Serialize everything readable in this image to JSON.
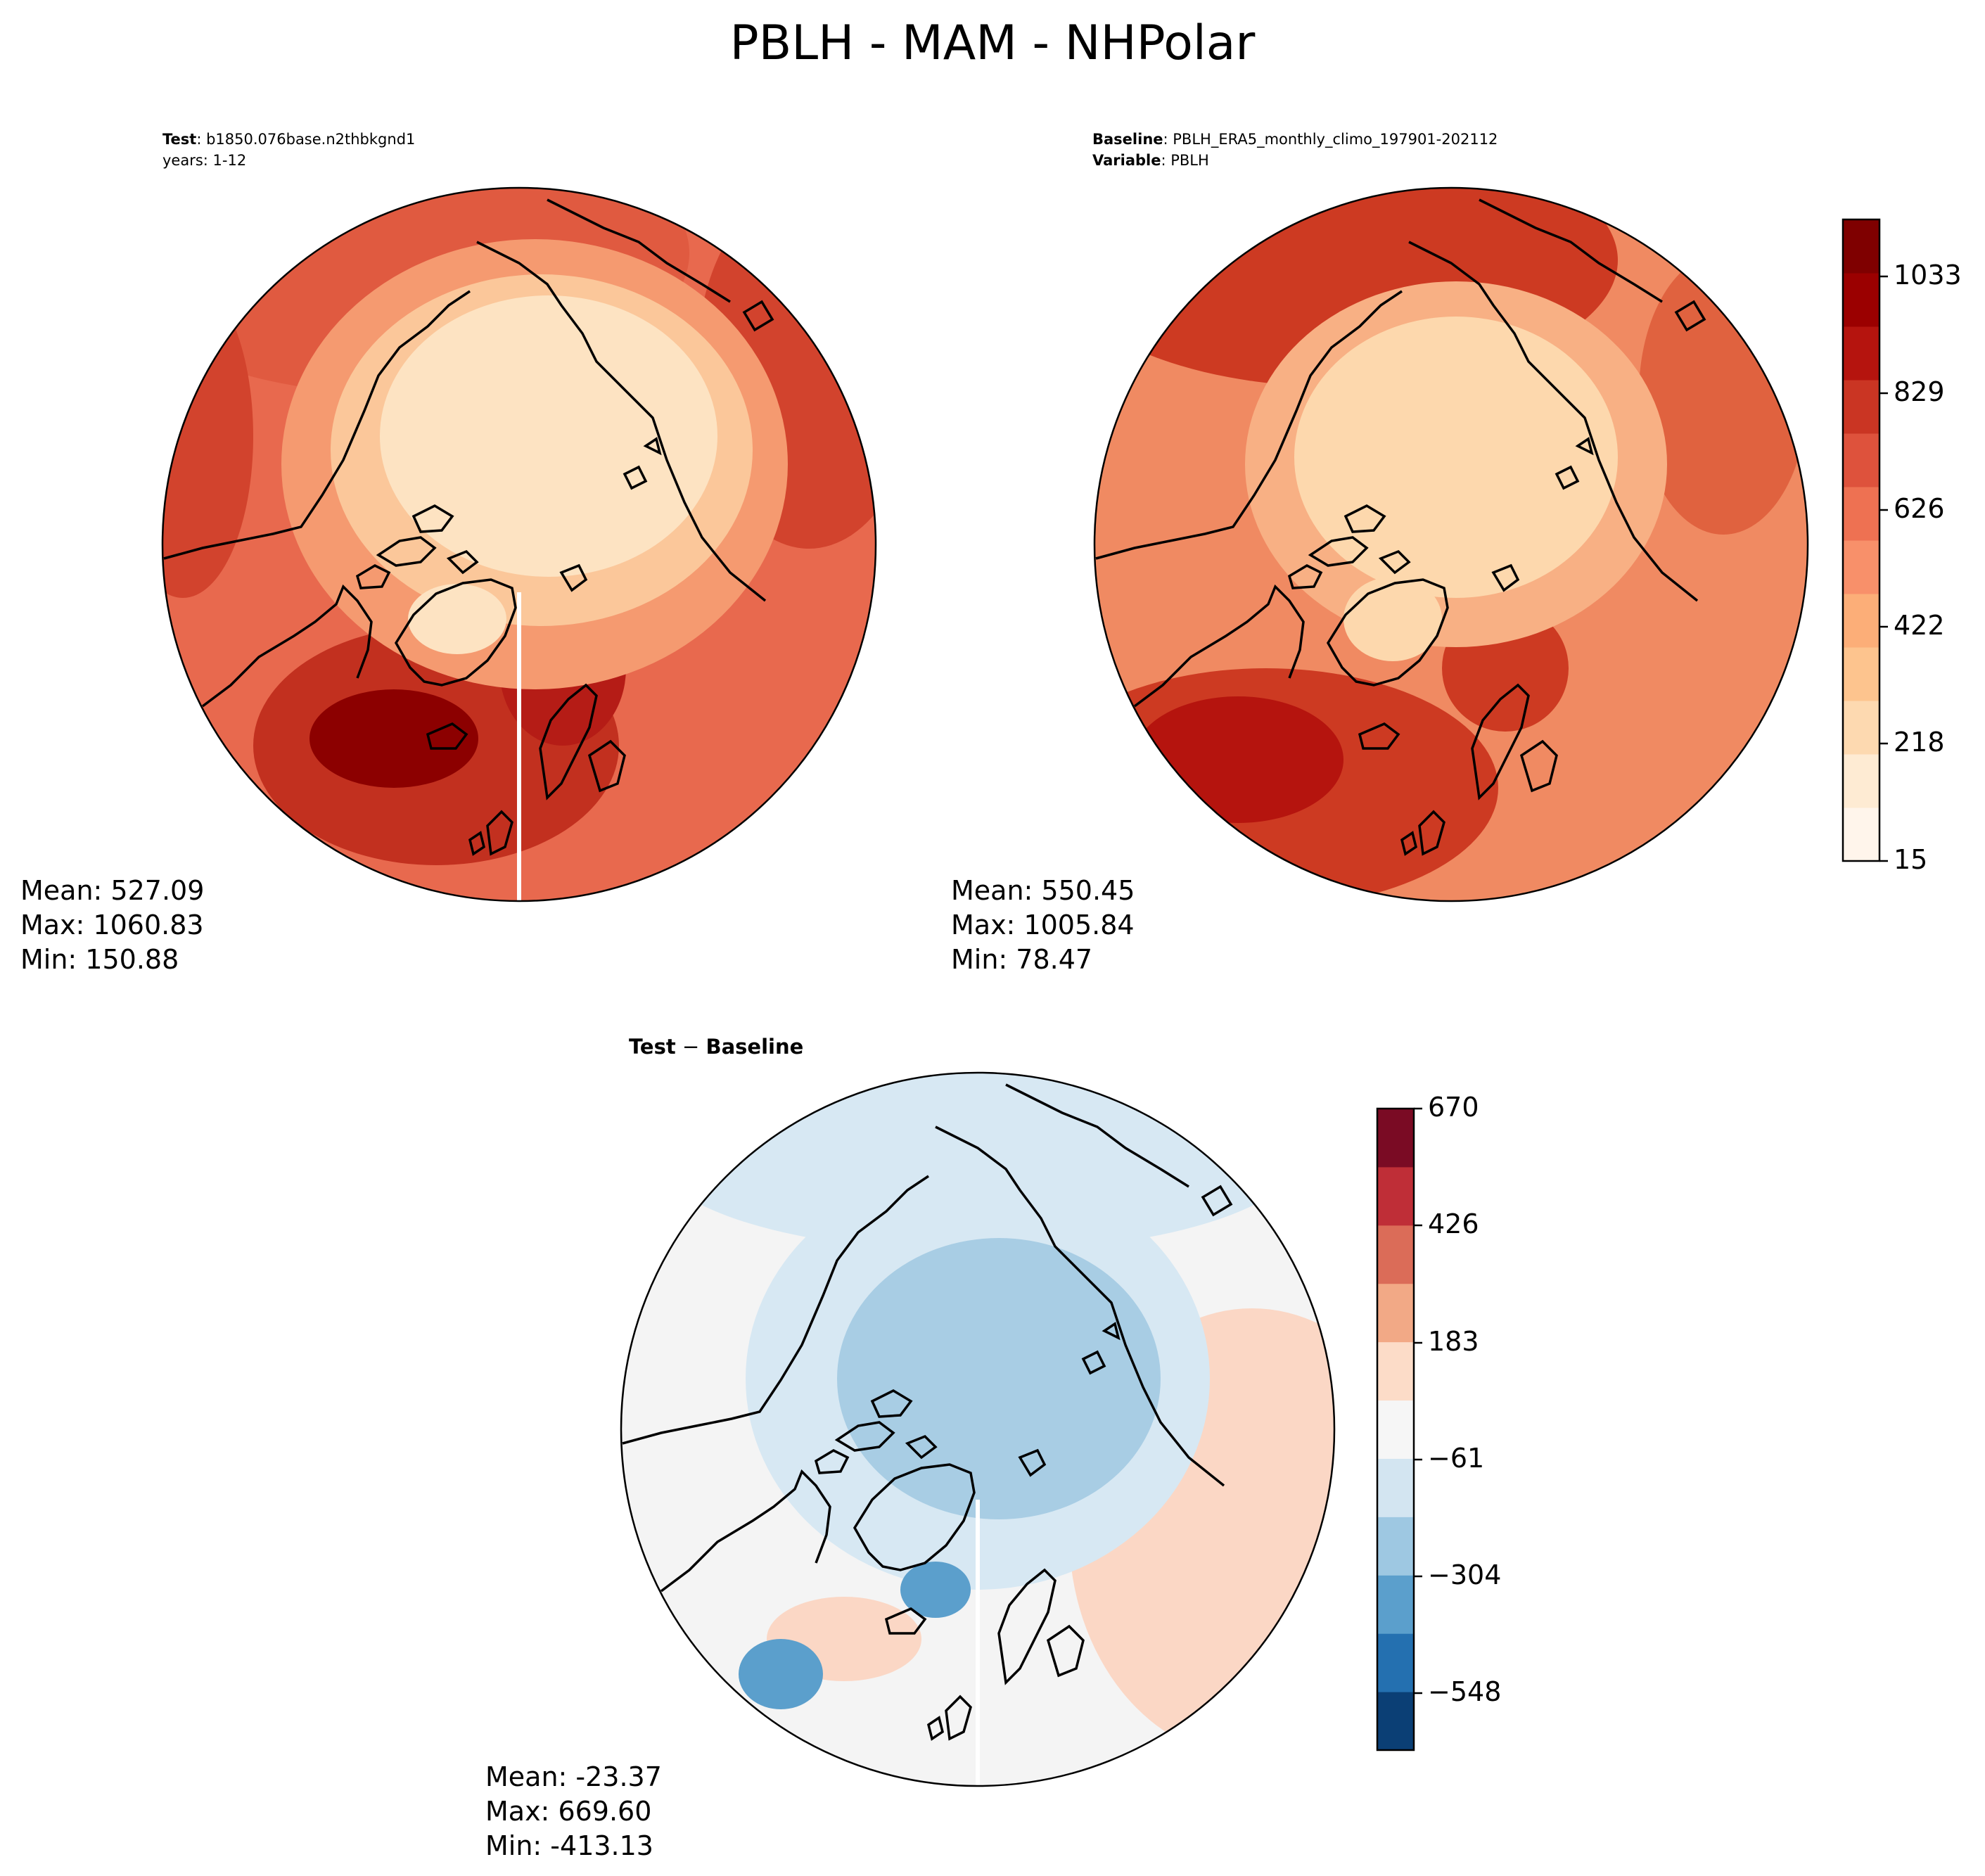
{
  "figure": {
    "title": "PBLH - MAM - NHPolar"
  },
  "panels": {
    "test": {
      "label_bold": "Test",
      "label_text": ": b1850.076base.n2thbkgnd1",
      "line2": "years: 1-12",
      "stats": {
        "mean": "Mean: 527.09",
        "max": "Max: 1060.83",
        "min": "Min: 150.88"
      }
    },
    "baseline": {
      "label1_bold": "Baseline",
      "label1_text": ": PBLH_ERA5_monthly_climo_197901-202112",
      "label2_bold": "Variable",
      "label2_text": ": PBLH",
      "stats": {
        "mean": "Mean: 550.45",
        "max": "Max: 1005.84",
        "min": "Min: 78.47"
      }
    },
    "diff": {
      "title_a": "Test",
      "title_sep": " − ",
      "title_b": "Baseline",
      "stats": {
        "mean": "Mean: -23.37",
        "max": "Max: 669.60",
        "min": "Min: -413.13"
      }
    }
  },
  "colorbars": {
    "main": {
      "cmap": "OrRd-like",
      "colors": [
        "#fff5eb",
        "#feebd3",
        "#fdd9b0",
        "#fdc48e",
        "#fcae78",
        "#f8906a",
        "#ee7152",
        "#de523c",
        "#ca3523",
        "#b5140e",
        "#9b0000",
        "#7f0000"
      ],
      "ticks": [
        "15",
        "218",
        "422",
        "626",
        "829",
        "1033"
      ]
    },
    "diff": {
      "cmap": "RdBu_r",
      "colors": [
        "#0b3f75",
        "#2470b0",
        "#5b9fcc",
        "#9ec8e2",
        "#d3e5f1",
        "#f6f6f6",
        "#fcdcc8",
        "#f2a986",
        "#db6c58",
        "#bf2e37",
        "#7a0b24"
      ],
      "ticks": [
        "−548",
        "−304",
        "−61",
        "183",
        "426",
        "670"
      ]
    }
  },
  "map_colors": {
    "land_outline": "#000000",
    "test_fill": [
      "#fde3c2",
      "#fbc79a",
      "#f59a70",
      "#e8694e",
      "#d2432d",
      "#b51c16",
      "#8c0000"
    ],
    "base_fill": [
      "#fdd8ad",
      "#f8b084",
      "#f08a62",
      "#e0623f",
      "#cd3a22"
    ],
    "diff_fill": [
      "#d7e8f3",
      "#a8cde4",
      "#f4f4f4",
      "#fbd7c5",
      "#f2b39a"
    ]
  }
}
